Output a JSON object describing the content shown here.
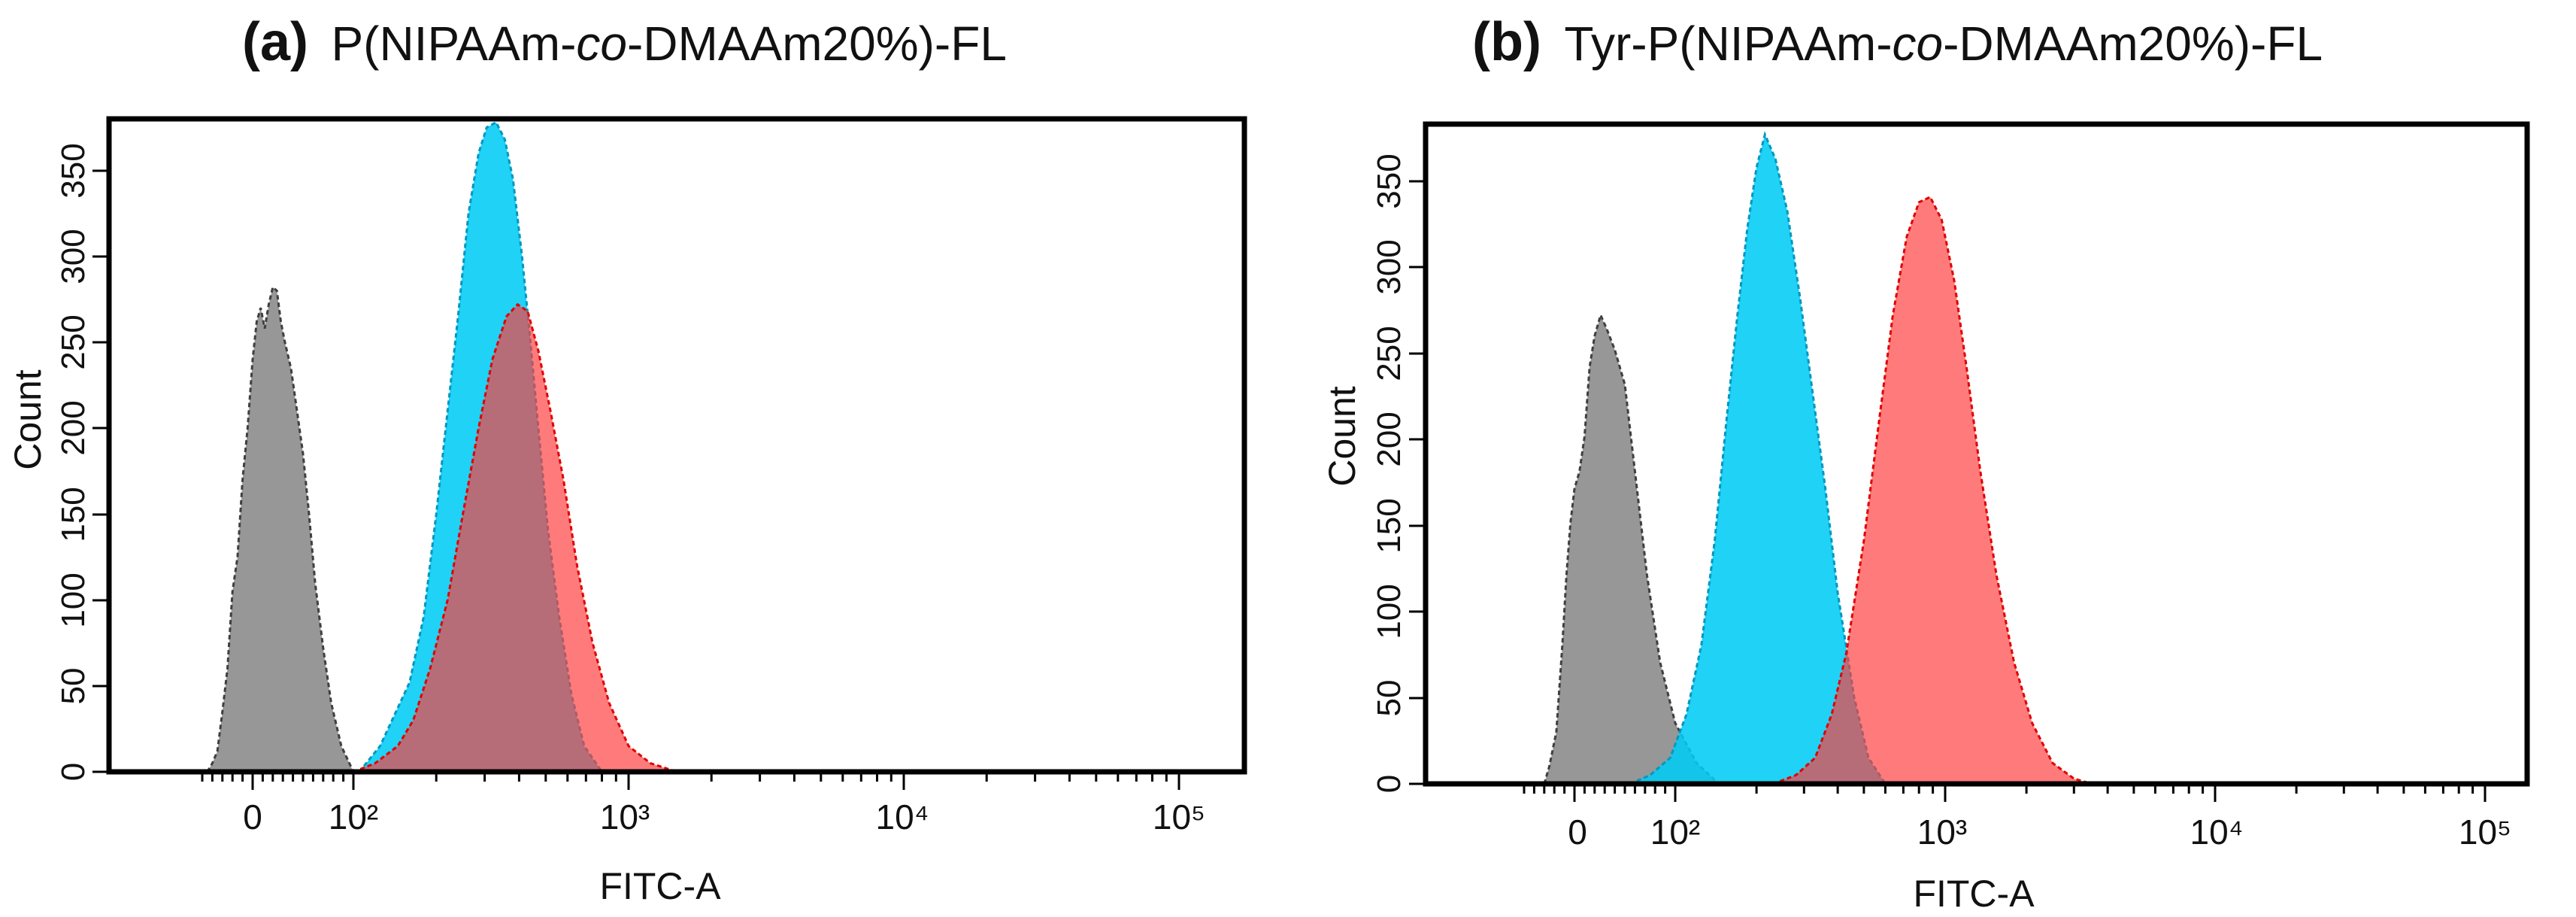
{
  "figure": {
    "panels": [
      {
        "letter": "(a)",
        "title_pre": "P(NIPAAm-",
        "title_italic": "co",
        "title_post": "-DMAAm20%)-FL"
      },
      {
        "letter": "(b)",
        "title_pre": "Tyr-P(NIPAAm-",
        "title_italic": "co",
        "title_post": "-DMAAm20%)-FL"
      }
    ]
  },
  "chart_data": [
    {
      "type": "area",
      "title": "(a) P(NIPAAm-co-DMAAm20%)-FL",
      "xlabel": "FITC-A",
      "ylabel": "Count",
      "x_scale": "biexponential (linear near 0, log above 10^2)",
      "xlim": [
        -60,
        100000
      ],
      "ylim": [
        0,
        380
      ],
      "xticks": [
        "0",
        "10²",
        "10³",
        "10⁴",
        "10⁵"
      ],
      "yticks": [
        "0",
        "50",
        "100",
        "150",
        "200",
        "250",
        "300",
        "350"
      ],
      "grid": false,
      "legend": "none",
      "series": [
        {
          "color": "#808080",
          "points": [
            [
              -45,
              0
            ],
            [
              -40,
              5
            ],
            [
              -35,
              12
            ],
            [
              -30,
              35
            ],
            [
              -25,
              60
            ],
            [
              -20,
              105
            ],
            [
              -15,
              125
            ],
            [
              -10,
              170
            ],
            [
              -5,
              200
            ],
            [
              0,
              240
            ],
            [
              4,
              262
            ],
            [
              8,
              270
            ],
            [
              12,
              258
            ],
            [
              16,
              272
            ],
            [
              20,
              282
            ],
            [
              24,
              280
            ],
            [
              28,
              262
            ],
            [
              32,
              250
            ],
            [
              38,
              235
            ],
            [
              44,
              210
            ],
            [
              50,
              185
            ],
            [
              56,
              150
            ],
            [
              62,
              110
            ],
            [
              70,
              72
            ],
            [
              78,
              40
            ],
            [
              88,
              15
            ],
            [
              100,
              0
            ]
          ]
        },
        {
          "color": "#00CCF5",
          "points": [
            [
              105,
              0
            ],
            [
              125,
              15
            ],
            [
              140,
              32
            ],
            [
              160,
              52
            ],
            [
              180,
              90
            ],
            [
              200,
              150
            ],
            [
              220,
              210
            ],
            [
              240,
              265
            ],
            [
              262,
              325
            ],
            [
              285,
              360
            ],
            [
              305,
              375
            ],
            [
              330,
              378
            ],
            [
              355,
              368
            ],
            [
              380,
              345
            ],
            [
              410,
              300
            ],
            [
              440,
              250
            ],
            [
              470,
              200
            ],
            [
              510,
              140
            ],
            [
              560,
              90
            ],
            [
              620,
              45
            ],
            [
              690,
              15
            ],
            [
              800,
              0
            ]
          ]
        },
        {
          "color": "#FF3C3C",
          "points": [
            [
              100,
              0
            ],
            [
              120,
              5
            ],
            [
              145,
              15
            ],
            [
              165,
              30
            ],
            [
              190,
              60
            ],
            [
              220,
              100
            ],
            [
              250,
              150
            ],
            [
              285,
              200
            ],
            [
              320,
              240
            ],
            [
              360,
              265
            ],
            [
              395,
              272
            ],
            [
              430,
              268
            ],
            [
              470,
              245
            ],
            [
              520,
              210
            ],
            [
              580,
              170
            ],
            [
              650,
              120
            ],
            [
              740,
              75
            ],
            [
              850,
              40
            ],
            [
              1000,
              15
            ],
            [
              1200,
              5
            ],
            [
              1500,
              0
            ]
          ]
        }
      ]
    },
    {
      "type": "area",
      "title": "(b) Tyr-P(NIPAAm-co-DMAAm20%)-FL",
      "xlabel": "FITC-A",
      "ylabel": "Count",
      "x_scale": "biexponential (linear near 0, log above 10^2)",
      "xlim": [
        -60,
        100000
      ],
      "ylim": [
        0,
        380
      ],
      "xticks": [
        "0",
        "10²",
        "10³",
        "10⁴",
        "10⁵"
      ],
      "yticks": [
        "0",
        "50",
        "100",
        "150",
        "200",
        "250",
        "300",
        "350"
      ],
      "grid": false,
      "legend": "none",
      "series": [
        {
          "color": "#808080",
          "points": [
            [
              -30,
              0
            ],
            [
              -25,
              10
            ],
            [
              -18,
              30
            ],
            [
              -12,
              80
            ],
            [
              -8,
              120
            ],
            [
              -4,
              150
            ],
            [
              0,
              170
            ],
            [
              5,
              180
            ],
            [
              10,
              200
            ],
            [
              15,
              240
            ],
            [
              20,
              258
            ],
            [
              26,
              270
            ],
            [
              32,
              262
            ],
            [
              40,
              250
            ],
            [
              50,
              230
            ],
            [
              60,
              180
            ],
            [
              72,
              120
            ],
            [
              85,
              70
            ],
            [
              100,
              35
            ],
            [
              120,
              12
            ],
            [
              145,
              0
            ]
          ]
        },
        {
          "color": "#00CCF5",
          "points": [
            [
              55,
              0
            ],
            [
              75,
              5
            ],
            [
              95,
              15
            ],
            [
              110,
              40
            ],
            [
              125,
              80
            ],
            [
              140,
              140
            ],
            [
              155,
              210
            ],
            [
              170,
              270
            ],
            [
              185,
              320
            ],
            [
              200,
              355
            ],
            [
              215,
              374
            ],
            [
              235,
              360
            ],
            [
              260,
              330
            ],
            [
              290,
              280
            ],
            [
              320,
              230
            ],
            [
              360,
              170
            ],
            [
              400,
              110
            ],
            [
              460,
              50
            ],
            [
              520,
              15
            ],
            [
              600,
              0
            ]
          ]
        },
        {
          "color": "#FF3C3C",
          "points": [
            [
              230,
              0
            ],
            [
              280,
              5
            ],
            [
              330,
              15
            ],
            [
              380,
              40
            ],
            [
              430,
              75
            ],
            [
              500,
              140
            ],
            [
              570,
              210
            ],
            [
              640,
              270
            ],
            [
              720,
              315
            ],
            [
              800,
              335
            ],
            [
              880,
              338
            ],
            [
              970,
              325
            ],
            [
              1080,
              290
            ],
            [
              1200,
              240
            ],
            [
              1350,
              180
            ],
            [
              1550,
              120
            ],
            [
              1800,
              70
            ],
            [
              2100,
              35
            ],
            [
              2500,
              12
            ],
            [
              3000,
              3
            ],
            [
              3500,
              0
            ]
          ]
        }
      ]
    }
  ]
}
